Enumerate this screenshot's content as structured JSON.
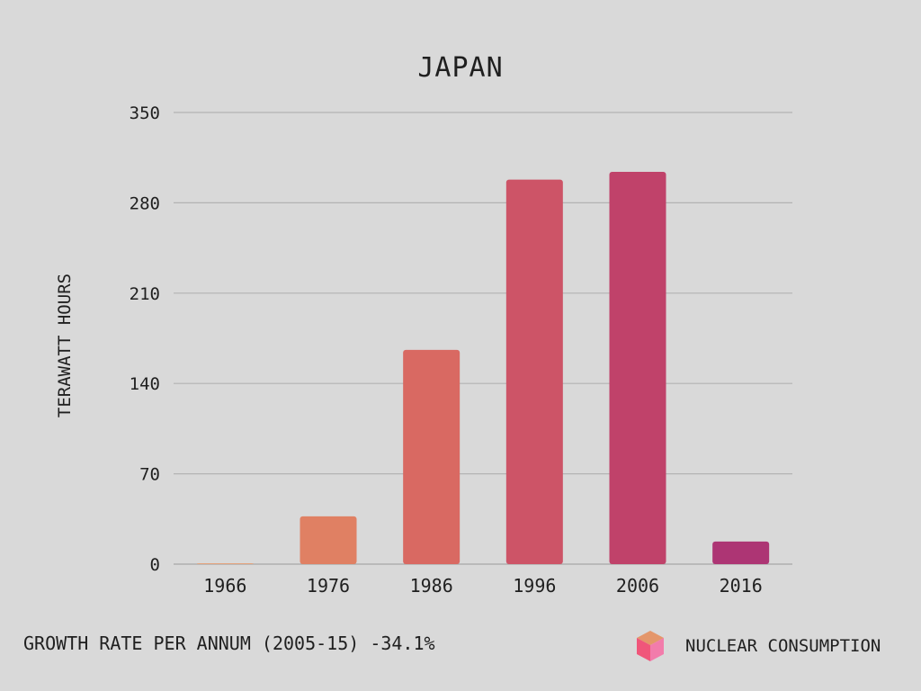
{
  "chart_data": {
    "type": "bar",
    "title": "JAPAN",
    "ylabel": "TERAWATT HOURS",
    "xlabel": "",
    "categories": [
      "1966",
      "1976",
      "1986",
      "1996",
      "2006",
      "2016"
    ],
    "values": [
      0.5,
      37,
      166,
      298,
      304,
      17.5
    ],
    "bar_colors": [
      "#e4a37c",
      "#e08063",
      "#d96962",
      "#cd5467",
      "#c0426a",
      "#ad3574"
    ],
    "ylim": [
      0,
      350
    ],
    "yticks": [
      "0",
      "70",
      "140",
      "210",
      "280",
      "350"
    ],
    "grid": true
  },
  "footer": {
    "growth_text": "GROWTH RATE PER ANNUM (2005-15) -34.1%",
    "legend_label": "NUCLEAR CONSUMPTION",
    "legend_icon": "cube-icon"
  }
}
